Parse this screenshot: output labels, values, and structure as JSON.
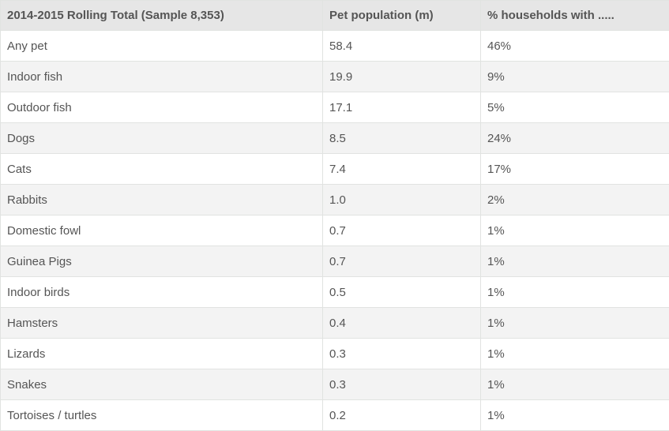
{
  "table": {
    "headers": [
      "2014-2015 Rolling Total (Sample 8,353)",
      "Pet population (m)",
      "% households with ....."
    ],
    "rows": [
      [
        "Any pet",
        "58.4",
        "46%"
      ],
      [
        "Indoor fish",
        "19.9",
        "9%"
      ],
      [
        "Outdoor fish",
        "17.1",
        "5%"
      ],
      [
        "Dogs",
        "8.5",
        "24%"
      ],
      [
        "Cats",
        "7.4",
        "17%"
      ],
      [
        "Rabbits",
        "1.0",
        "2%"
      ],
      [
        "Domestic fowl",
        "0.7",
        "1%"
      ],
      [
        "Guinea Pigs",
        "0.7",
        "1%"
      ],
      [
        "Indoor birds",
        "0.5",
        "1%"
      ],
      [
        "Hamsters",
        "0.4",
        "1%"
      ],
      [
        "Lizards",
        "0.3",
        "1%"
      ],
      [
        "Snakes",
        "0.3",
        "1%"
      ],
      [
        "Tortoises / turtles",
        "0.2",
        "1%"
      ]
    ]
  }
}
